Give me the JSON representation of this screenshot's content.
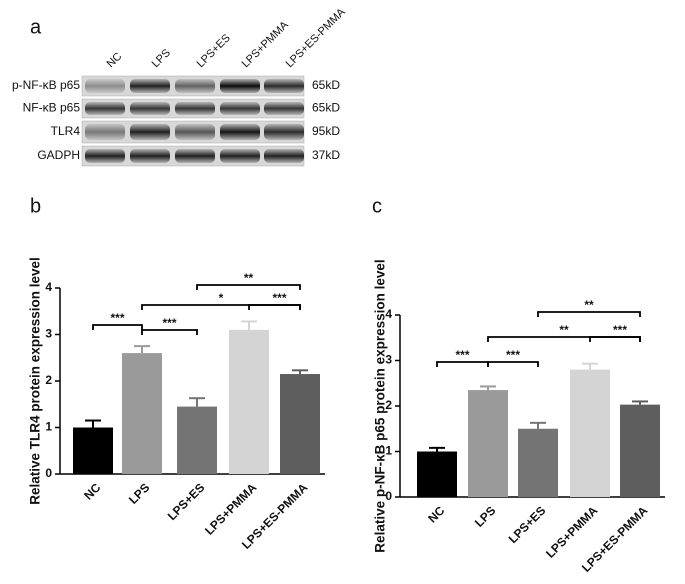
{
  "blot": {
    "panel_label": "a",
    "lanes": [
      "NC",
      "LPS",
      "LPS+ES",
      "LPS+PMMA",
      "LPS+ES-PMMA"
    ],
    "proteins": [
      "p-NF-κB p65",
      "NF-κB p65",
      "TLR4",
      "GADPH"
    ],
    "sizes": [
      "65kD",
      "65kD",
      "95kD",
      "37kD"
    ]
  },
  "chart_data": [
    {
      "type": "bar",
      "panel_label": "b",
      "y_label": "Relative TLR4 protein expression level",
      "categories": [
        "NC",
        "LPS",
        "LPS+ES",
        "LPS+PMMA",
        "LPS+ES-PMMA"
      ],
      "values": [
        1.0,
        2.6,
        1.45,
        3.1,
        2.15
      ],
      "errors": [
        0.15,
        0.15,
        0.18,
        0.18,
        0.08
      ],
      "colors": [
        "#000000",
        "#9a9a9a",
        "#747474",
        "#d4d4d4",
        "#5e5e5e"
      ],
      "ylim": [
        0,
        4
      ],
      "yticks": [
        0,
        1,
        2,
        3,
        4
      ],
      "annotations": [
        "***",
        "***",
        "*",
        "***",
        "**"
      ]
    },
    {
      "type": "bar",
      "panel_label": "c",
      "y_label": "Relative p-NF-κB p65 protein expression level",
      "categories": [
        "NC",
        "LPS",
        "LPS+ES",
        "LPS+PMMA",
        "LPS+ES-PMMA"
      ],
      "values": [
        1.0,
        2.35,
        1.5,
        2.8,
        2.03
      ],
      "errors": [
        0.08,
        0.08,
        0.13,
        0.13,
        0.07
      ],
      "colors": [
        "#000000",
        "#9a9a9a",
        "#747474",
        "#d4d4d4",
        "#5e5e5e"
      ],
      "ylim": [
        0,
        4
      ],
      "yticks": [
        0,
        1,
        2,
        3,
        4
      ],
      "annotations": [
        "***",
        "***",
        "**",
        "***",
        "**"
      ]
    }
  ]
}
